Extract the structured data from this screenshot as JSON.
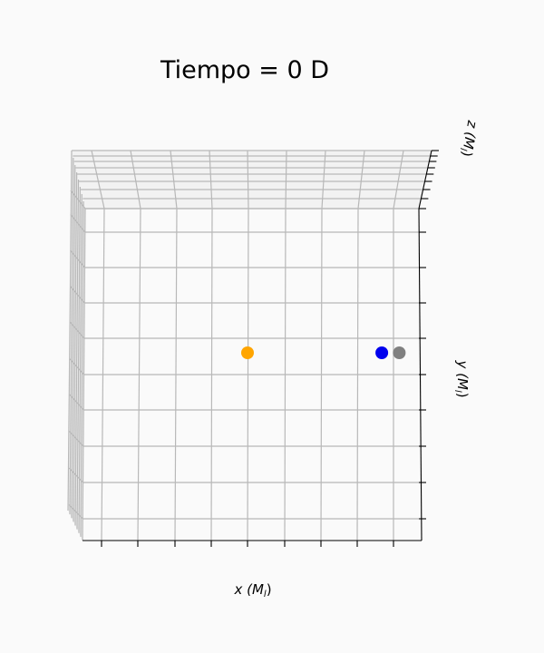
{
  "chart_data": {
    "type": "scatter",
    "projection": "3d",
    "title": "Tiempo = 0 D",
    "xlabel": "x (M",
    "xlabel_sub": "l",
    "ylabel": "y (M",
    "ylabel_sub": "l",
    "zlabel": "z (M",
    "zlabel_sub": "l",
    "label_close": ")",
    "grid": true,
    "tick_labels": false,
    "x_range": [
      -1,
      1
    ],
    "y_range": [
      -1,
      1
    ],
    "series": [
      {
        "color": "#ffa500",
        "points": [
          {
            "x": 0,
            "y": 0,
            "z": 0
          }
        ]
      },
      {
        "color": "#0000ee",
        "points": [
          {
            "x": 0.92,
            "y": 0,
            "z": 0
          }
        ]
      },
      {
        "color": "#808080",
        "points": [
          {
            "x": 1.04,
            "y": 0,
            "z": 0
          }
        ]
      }
    ]
  }
}
